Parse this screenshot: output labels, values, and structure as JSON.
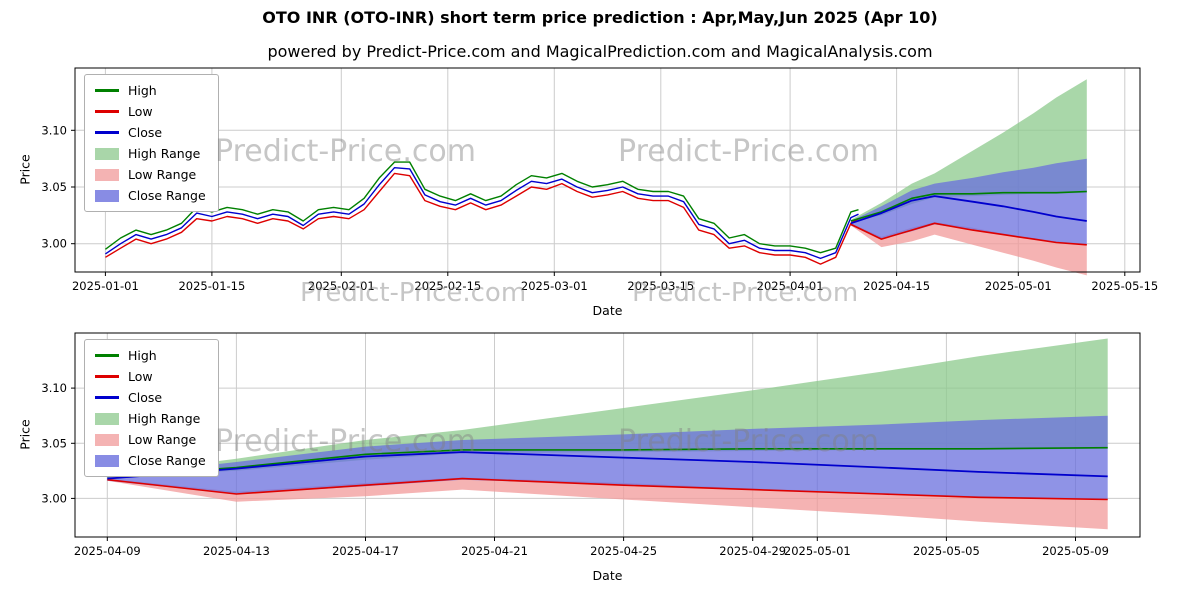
{
  "header": {
    "title": "OTO INR (OTO-INR) short term price prediction : Apr,May,Jun 2025 (Apr 10)",
    "subtitle": "powered by Predict-Price.com and MagicalPrediction.com and MagicalAnalysis.com"
  },
  "watermark": "Predict-Price.com",
  "chart_data": {
    "type": "line",
    "xlabel": "Date",
    "ylabel": "Price",
    "colors": {
      "high": "#008000",
      "low": "#dd0000",
      "close": "#0000cd",
      "high_band": "#8cc98c",
      "low_band": "#f19999",
      "close_band": "#6a6fdd",
      "band_opacity": 0.75,
      "grid": "#cccccc"
    },
    "legend": [
      {
        "label": "High",
        "swatch": "line",
        "color": "#008000"
      },
      {
        "label": "Low",
        "swatch": "line",
        "color": "#dd0000"
      },
      {
        "label": "Close",
        "swatch": "line",
        "color": "#0000cd"
      },
      {
        "label": "High Range",
        "swatch": "patch",
        "color": "#a9d6a9"
      },
      {
        "label": "Low Range",
        "swatch": "patch",
        "color": "#f4b3b3"
      },
      {
        "label": "Close Range",
        "swatch": "patch",
        "color": "#888ce4"
      }
    ],
    "historical": {
      "dates": [
        "2025-01-01",
        "2025-01-03",
        "2025-01-05",
        "2025-01-07",
        "2025-01-09",
        "2025-01-11",
        "2025-01-13",
        "2025-01-15",
        "2025-01-17",
        "2025-01-19",
        "2025-01-21",
        "2025-01-23",
        "2025-01-25",
        "2025-01-27",
        "2025-01-29",
        "2025-01-31",
        "2025-02-02",
        "2025-02-04",
        "2025-02-06",
        "2025-02-08",
        "2025-02-10",
        "2025-02-12",
        "2025-02-14",
        "2025-02-16",
        "2025-02-18",
        "2025-02-20",
        "2025-02-22",
        "2025-02-24",
        "2025-02-26",
        "2025-02-28",
        "2025-03-02",
        "2025-03-04",
        "2025-03-06",
        "2025-03-08",
        "2025-03-10",
        "2025-03-12",
        "2025-03-14",
        "2025-03-16",
        "2025-03-18",
        "2025-03-20",
        "2025-03-22",
        "2025-03-24",
        "2025-03-26",
        "2025-03-28",
        "2025-03-30",
        "2025-04-01",
        "2025-04-03",
        "2025-04-05",
        "2025-04-07",
        "2025-04-09",
        "2025-04-10"
      ],
      "high": [
        2.995,
        3.005,
        3.012,
        3.008,
        3.012,
        3.018,
        3.032,
        3.028,
        3.032,
        3.03,
        3.026,
        3.03,
        3.028,
        3.02,
        3.03,
        3.032,
        3.03,
        3.04,
        3.058,
        3.072,
        3.072,
        3.048,
        3.042,
        3.038,
        3.044,
        3.038,
        3.042,
        3.052,
        3.06,
        3.058,
        3.062,
        3.055,
        3.05,
        3.052,
        3.055,
        3.048,
        3.046,
        3.046,
        3.042,
        3.022,
        3.018,
        3.005,
        3.008,
        3.0,
        2.998,
        2.998,
        2.996,
        2.992,
        2.996,
        3.028,
        3.03
      ],
      "low": [
        2.988,
        2.996,
        3.004,
        3.0,
        3.004,
        3.01,
        3.022,
        3.02,
        3.024,
        3.022,
        3.018,
        3.022,
        3.02,
        3.013,
        3.022,
        3.024,
        3.022,
        3.03,
        3.046,
        3.062,
        3.06,
        3.038,
        3.033,
        3.03,
        3.036,
        3.03,
        3.034,
        3.042,
        3.05,
        3.048,
        3.053,
        3.046,
        3.041,
        3.043,
        3.046,
        3.04,
        3.038,
        3.038,
        3.032,
        3.012,
        3.008,
        2.996,
        2.998,
        2.992,
        2.99,
        2.99,
        2.988,
        2.982,
        2.988,
        3.018,
        3.022
      ],
      "close": [
        2.991,
        3.0,
        3.008,
        3.004,
        3.008,
        3.014,
        3.027,
        3.024,
        3.028,
        3.026,
        3.022,
        3.026,
        3.024,
        3.016,
        3.026,
        3.028,
        3.026,
        3.035,
        3.052,
        3.067,
        3.066,
        3.043,
        3.037,
        3.034,
        3.04,
        3.034,
        3.038,
        3.047,
        3.055,
        3.053,
        3.057,
        3.05,
        3.045,
        3.047,
        3.05,
        3.044,
        3.042,
        3.042,
        3.037,
        3.017,
        3.013,
        3.0,
        3.003,
        2.996,
        2.994,
        2.994,
        2.992,
        2.987,
        2.992,
        3.023,
        3.026
      ]
    },
    "prediction": {
      "dates": [
        "2025-04-09",
        "2025-04-13",
        "2025-04-17",
        "2025-04-20",
        "2025-04-25",
        "2025-04-29",
        "2025-05-03",
        "2025-05-06",
        "2025-05-10"
      ],
      "high": [
        3.02,
        3.028,
        3.04,
        3.044,
        3.044,
        3.045,
        3.045,
        3.045,
        3.046
      ],
      "low": [
        3.017,
        3.004,
        3.012,
        3.018,
        3.012,
        3.008,
        3.004,
        3.001,
        2.999
      ],
      "close": [
        3.018,
        3.027,
        3.038,
        3.042,
        3.037,
        3.033,
        3.028,
        3.024,
        3.02
      ],
      "high_upper": [
        3.021,
        3.036,
        3.053,
        3.062,
        3.082,
        3.098,
        3.115,
        3.129,
        3.145
      ],
      "high_lower": [
        3.019,
        3.025,
        3.035,
        3.041,
        3.042,
        3.043,
        3.044,
        3.044,
        3.045
      ],
      "low_upper": [
        3.018,
        3.006,
        3.014,
        3.019,
        3.014,
        3.009,
        3.005,
        3.002,
        3.0
      ],
      "low_lower": [
        3.016,
        2.997,
        3.002,
        3.008,
        2.999,
        2.992,
        2.985,
        2.979,
        2.972
      ],
      "close_upper": [
        3.02,
        3.033,
        3.047,
        3.053,
        3.058,
        3.063,
        3.067,
        3.071,
        3.075
      ],
      "close_lower": [
        3.016,
        3.004,
        3.011,
        3.017,
        3.012,
        3.008,
        3.004,
        3.001,
        2.999
      ]
    },
    "charts": [
      {
        "id": "chart-top",
        "name": "full-history-and-prediction",
        "x_domain": [
          "2024-12-28",
          "2025-05-17"
        ],
        "y_domain": [
          2.975,
          3.155
        ],
        "x_ticks": [
          "2025-01-01",
          "2025-01-15",
          "2025-02-01",
          "2025-02-15",
          "2025-03-01",
          "2025-03-15",
          "2025-04-01",
          "2025-04-15",
          "2025-05-01",
          "2025-05-15"
        ],
        "y_ticks": [
          3.0,
          3.05,
          3.1
        ],
        "show_historical": true
      },
      {
        "id": "chart-bottom",
        "name": "prediction-zoom",
        "x_domain": [
          "2025-04-08",
          "2025-05-11"
        ],
        "y_domain": [
          2.965,
          3.15
        ],
        "x_ticks": [
          "2025-04-09",
          "2025-04-13",
          "2025-04-17",
          "2025-04-21",
          "2025-04-25",
          "2025-04-29",
          "2025-05-01",
          "2025-05-05",
          "2025-05-09"
        ],
        "y_ticks": [
          3.0,
          3.05,
          3.1
        ],
        "show_historical": false
      }
    ]
  }
}
